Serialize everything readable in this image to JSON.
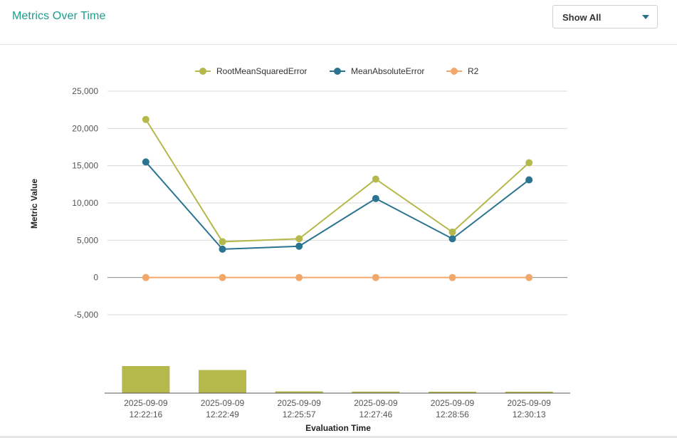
{
  "header": {
    "title": "Metrics Over Time",
    "dropdown_value": "Show All"
  },
  "chart_data": {
    "type": "line",
    "ylabel": "Metric Value",
    "xlabel": "Evaluation Time",
    "ylim": [
      -5000,
      25000
    ],
    "yticks": [
      25000,
      20000,
      15000,
      10000,
      5000,
      0,
      -5000
    ],
    "ytick_labels": [
      "25,000",
      "20,000",
      "15,000",
      "10,000",
      "5,000",
      "0",
      "-5,000"
    ],
    "categories": [
      [
        "2025-09-09",
        "12:22:16"
      ],
      [
        "2025-09-09",
        "12:22:49"
      ],
      [
        "2025-09-09",
        "12:25:57"
      ],
      [
        "2025-09-09",
        "12:27:46"
      ],
      [
        "2025-09-09",
        "12:28:56"
      ],
      [
        "2025-09-09",
        "12:30:13"
      ]
    ],
    "series": [
      {
        "name": "RootMeanSquaredError",
        "color": "#b5b84a",
        "values": [
          21200,
          4800,
          5200,
          13200,
          6100,
          15400
        ]
      },
      {
        "name": "MeanAbsoluteError",
        "color": "#2a7490",
        "values": [
          15500,
          3800,
          4200,
          10600,
          5200,
          13100
        ]
      },
      {
        "name": "R2",
        "color": "#f2a86a",
        "values": [
          0,
          0,
          0,
          0,
          0,
          0
        ]
      }
    ],
    "legend_position": "top",
    "grid": true,
    "navigator": {
      "color": "#b5b84a",
      "values": [
        21200,
        18100,
        1400,
        1200,
        800,
        700
      ]
    }
  }
}
